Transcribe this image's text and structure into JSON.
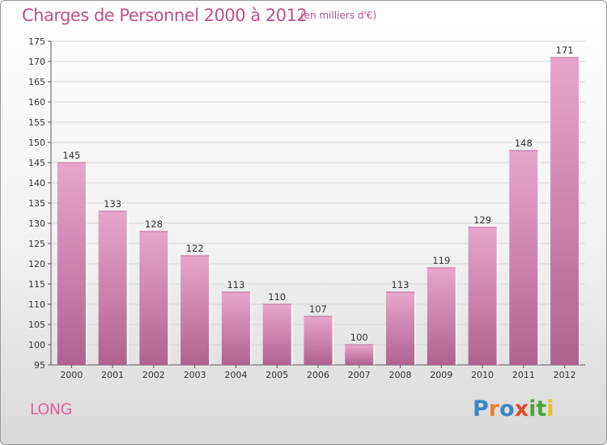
{
  "header": {
    "title": "Charges de Personnel 2000 à 2012",
    "subtitle": "(en milliers d'€)"
  },
  "footer": {
    "place": "LONG",
    "logo_letters": [
      "P",
      "r",
      "o",
      "x",
      "i",
      "t",
      "i"
    ]
  },
  "colors": {
    "bar_top": "#e8a6cc",
    "bar_bottom": "#b0628f",
    "title": "#c0508a",
    "logo": [
      "#3b86c7",
      "#e8822a",
      "#3b86c7",
      "#e0492c",
      "#4aa53a",
      "#4aa53a",
      "#e0c223"
    ]
  },
  "chart_data": {
    "type": "bar",
    "categories": [
      "2000",
      "2001",
      "2002",
      "2003",
      "2004",
      "2005",
      "2006",
      "2007",
      "2008",
      "2009",
      "2010",
      "2011",
      "2012"
    ],
    "values": [
      145,
      133,
      128,
      122,
      113,
      110,
      107,
      100,
      113,
      119,
      129,
      148,
      171
    ],
    "ylim": [
      95,
      175
    ],
    "yticks": [
      95,
      100,
      105,
      110,
      115,
      120,
      125,
      130,
      135,
      140,
      145,
      150,
      155,
      160,
      165,
      170,
      175
    ],
    "grid": true
  }
}
